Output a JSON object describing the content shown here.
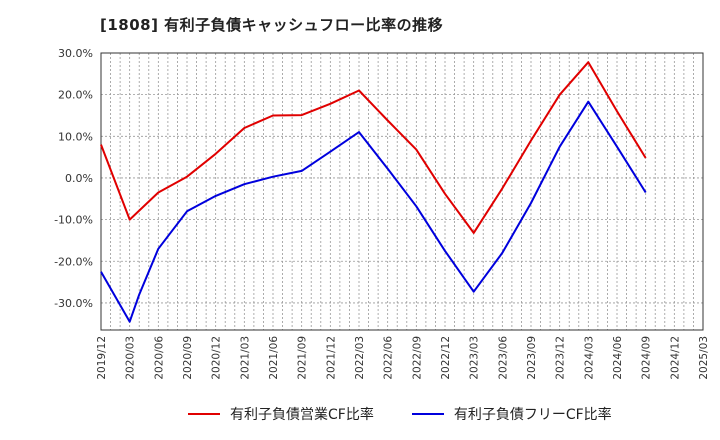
{
  "chart_data": {
    "type": "line",
    "title": "[1808]  有利子負債キャッシュフロー比率の推移",
    "xlabel": "",
    "ylabel": "",
    "x_ticks": [
      "2019/12",
      "2020/03",
      "2020/06",
      "2020/09",
      "2020/12",
      "2021/03",
      "2021/06",
      "2021/09",
      "2021/12",
      "2022/03",
      "2022/06",
      "2022/09",
      "2022/12",
      "2023/03",
      "2023/06",
      "2023/09",
      "2023/12",
      "2024/03",
      "2024/06",
      "2024/09",
      "2024/12",
      "2025/03"
    ],
    "y_ticks": [
      "30.0%",
      "20.0%",
      "10.0%",
      "0.0%",
      "-10.0%",
      "-20.0%",
      "-30.0%"
    ],
    "ylim": [
      -36.5,
      30.0
    ],
    "grid": true,
    "legend_position": "bottom",
    "series": [
      {
        "name": "有利子負債営業CF比率",
        "color": "#e00000",
        "points": [
          [
            "2019/12",
            8.0
          ],
          [
            "2020/03",
            -10.0
          ],
          [
            "2020/06",
            -3.5
          ],
          [
            "2020/09",
            0.3
          ],
          [
            "2020/12",
            5.8
          ],
          [
            "2021/03",
            12.0
          ],
          [
            "2021/06",
            15.0
          ],
          [
            "2021/09",
            15.1
          ],
          [
            "2021/12",
            17.8
          ],
          [
            "2022/03",
            21.0
          ],
          [
            "2022/06",
            13.8
          ],
          [
            "2022/09",
            6.8
          ],
          [
            "2022/12",
            -3.8
          ],
          [
            "2023/03",
            -13.2
          ],
          [
            "2023/06",
            -2.5
          ],
          [
            "2023/09",
            9.0
          ],
          [
            "2023/12",
            20.0
          ],
          [
            "2024/03",
            27.8
          ],
          [
            "2024/06",
            16.0
          ],
          [
            "2024/09",
            4.8
          ]
        ]
      },
      {
        "name": "有利子負債フリーCF比率",
        "color": "#0000dd",
        "points": [
          [
            "2019/12",
            -22.5
          ],
          [
            "2020/03",
            -34.5
          ],
          [
            "2020/04",
            -28.0
          ],
          [
            "2020/06",
            -17.0
          ],
          [
            "2020/09",
            -8.0
          ],
          [
            "2020/12",
            -4.3
          ],
          [
            "2021/03",
            -1.5
          ],
          [
            "2021/06",
            0.3
          ],
          [
            "2021/09",
            1.7
          ],
          [
            "2021/12",
            6.3
          ],
          [
            "2022/03",
            11.0
          ],
          [
            "2022/06",
            2.2
          ],
          [
            "2022/09",
            -6.8
          ],
          [
            "2022/12",
            -17.5
          ],
          [
            "2023/03",
            -27.3
          ],
          [
            "2023/06",
            -18.0
          ],
          [
            "2023/09",
            -6.0
          ],
          [
            "2023/12",
            7.5
          ],
          [
            "2024/03",
            18.3
          ],
          [
            "2024/06",
            7.5
          ],
          [
            "2024/09",
            -3.5
          ]
        ]
      }
    ]
  }
}
